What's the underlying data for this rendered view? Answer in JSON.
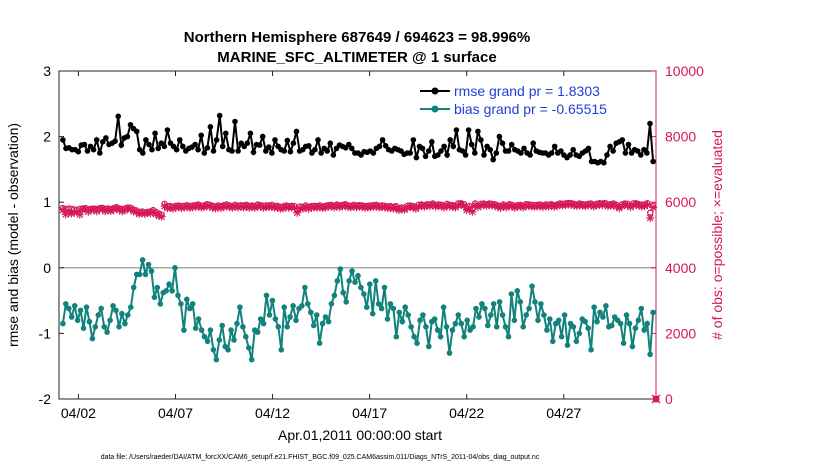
{
  "colors": {
    "rmse": "#000000",
    "bias": "#11827c",
    "obs": "#d6175a",
    "legend_text": "#1f3fd6",
    "zero_line": "#aaaaaa"
  },
  "chart_data": {
    "type": "line",
    "title_line1": "Northern Hemisphere 687649 / 694623 = 98.996%",
    "title_line2": "MARINE_SFC_ALTIMETER @ 1 surface",
    "xlabel": "Apr.01,2011 00:00:00 start",
    "ylabel_left": "rmse and bias (model - observation)",
    "ylabel_right": "# of obs: o=possible; ×=evaluated",
    "xlim": [
      0,
      30.75
    ],
    "ylim_left": [
      -2,
      3
    ],
    "ylim_right": [
      0,
      10000
    ],
    "x_ticks": [
      {
        "x": 1,
        "label": "04/02"
      },
      {
        "x": 6,
        "label": "04/07"
      },
      {
        "x": 11,
        "label": "04/12"
      },
      {
        "x": 16,
        "label": "04/17"
      },
      {
        "x": 21,
        "label": "04/22"
      },
      {
        "x": 26,
        "label": "04/27"
      }
    ],
    "y_ticks_left": [
      -2,
      -1,
      0,
      1,
      2,
      3
    ],
    "y_ticks_right": [
      0,
      2000,
      4000,
      6000,
      8000,
      10000
    ],
    "legend": [
      {
        "name": "rmse grand pr = 1.8303",
        "series": "rmse"
      },
      {
        "name": "bias grand pr = -0.65515",
        "series": "bias"
      }
    ],
    "footer": "data file: /Users/raeder/DAI/ATM_forcXX/CAM6_setup/f.e21.FHIST_BGC.f09_025.CAM6assim.011/Diags_NTrS_2011-04/obs_diag_output.nc",
    "series": [
      {
        "name": "rmse",
        "axis": "left",
        "values": [
          1.95,
          1.82,
          1.83,
          1.8,
          1.8,
          1.77,
          1.87,
          1.88,
          1.78,
          1.85,
          1.8,
          1.95,
          1.75,
          1.92,
          1.98,
          1.88,
          1.9,
          1.93,
          2.31,
          1.87,
          1.98,
          2.0,
          2.18,
          2.12,
          2.08,
          1.8,
          1.75,
          1.95,
          1.88,
          1.8,
          2.05,
          1.82,
          1.9,
          1.85,
          2.1,
          1.9,
          1.85,
          1.8,
          1.95,
          1.85,
          1.78,
          1.82,
          1.84,
          1.88,
          1.8,
          2.02,
          1.75,
          1.83,
          2.15,
          1.78,
          1.95,
          2.32,
          1.85,
          2.05,
          1.8,
          1.78,
          2.23,
          1.78,
          1.9,
          1.85,
          1.9,
          2.05,
          1.76,
          1.88,
          1.87,
          2.0,
          1.78,
          1.84,
          1.75,
          1.95,
          1.85,
          1.8,
          1.78,
          1.94,
          1.77,
          1.9,
          2.08,
          1.78,
          1.8,
          1.85,
          1.86,
          1.75,
          1.8,
          1.95,
          1.75,
          1.82,
          1.78,
          1.9,
          1.72,
          1.82,
          1.87,
          1.85,
          1.83,
          1.88,
          1.82,
          1.75,
          1.75,
          1.72,
          1.77,
          1.76,
          1.78,
          1.75,
          1.82,
          1.85,
          1.95,
          1.86,
          1.8,
          1.78,
          1.82,
          1.8,
          1.78,
          1.73,
          1.75,
          1.75,
          1.95,
          1.68,
          1.85,
          1.82,
          1.7,
          1.78,
          1.92,
          1.7,
          1.72,
          1.78,
          1.85,
          1.72,
          1.95,
          1.85,
          2.1,
          1.8,
          1.78,
          1.72,
          2.1,
          1.88,
          1.75,
          2.08,
          1.95,
          1.72,
          1.85,
          1.8,
          1.65,
          1.75,
          2.0,
          1.9,
          1.78,
          1.78,
          1.88,
          1.8,
          1.78,
          1.75,
          1.82,
          1.75,
          1.72,
          1.9,
          1.78,
          1.76,
          1.75,
          1.75,
          1.72,
          1.75,
          1.85,
          1.75,
          1.78,
          1.72,
          1.68,
          1.72,
          1.8,
          1.72,
          1.7,
          1.75,
          1.78,
          1.82,
          1.62,
          1.62,
          1.6,
          1.62,
          1.6,
          1.72,
          1.85,
          1.78,
          1.9,
          1.92,
          1.95,
          1.75,
          1.88,
          1.75,
          1.8,
          1.78,
          1.72,
          1.8,
          1.75,
          2.2,
          1.62
        ]
      },
      {
        "name": "bias",
        "axis": "left",
        "values": [
          -0.85,
          -0.55,
          -0.62,
          -0.75,
          -0.58,
          -0.8,
          -0.65,
          -0.92,
          -0.6,
          -0.82,
          -1.08,
          -0.9,
          -0.72,
          -0.62,
          -0.9,
          -0.98,
          -0.8,
          -0.58,
          -0.65,
          -0.9,
          -0.7,
          -0.85,
          -0.72,
          -0.6,
          -0.3,
          -0.1,
          -0.1,
          0.12,
          -0.1,
          0.05,
          -0.05,
          -0.45,
          -0.3,
          -0.55,
          -0.38,
          -0.35,
          -0.25,
          -0.35,
          0.0,
          -0.42,
          -0.55,
          -0.95,
          -0.48,
          -0.62,
          -0.55,
          -0.92,
          -0.78,
          -0.95,
          -1.05,
          -1.12,
          -0.95,
          -1.25,
          -1.4,
          -1.1,
          -0.88,
          -1.2,
          -1.25,
          -0.95,
          -1.1,
          -0.85,
          -0.6,
          -0.9,
          -1.05,
          -1.22,
          -1.4,
          -0.95,
          -0.98,
          -0.78,
          -0.85,
          -0.42,
          -0.72,
          -0.5,
          -0.78,
          -0.9,
          -1.25,
          -0.6,
          -0.9,
          -0.75,
          -0.58,
          -0.8,
          -0.62,
          -0.58,
          -0.3,
          -0.55,
          -0.68,
          -0.88,
          -0.72,
          -1.15,
          -0.85,
          -0.75,
          -0.82,
          -0.55,
          -0.42,
          -0.2,
          -0.02,
          -0.38,
          -0.52,
          -0.2,
          -0.05,
          -0.22,
          -0.12,
          -0.3,
          -0.4,
          -0.6,
          -0.25,
          -0.7,
          -0.2,
          -0.55,
          -0.62,
          -0.3,
          -0.78,
          -0.55,
          -0.62,
          -1.05,
          -0.68,
          -0.82,
          -0.6,
          -0.72,
          -0.9,
          -1.05,
          -1.15,
          -0.8,
          -0.72,
          -0.9,
          -1.2,
          -0.82,
          -0.78,
          -0.95,
          -1.05,
          -0.6,
          -0.9,
          -1.3,
          -0.95,
          -0.85,
          -0.72,
          -0.85,
          -1.05,
          -0.8,
          -0.95,
          -0.9,
          -0.62,
          -0.75,
          -0.55,
          -0.62,
          -0.88,
          -0.72,
          -0.55,
          -0.9,
          -0.52,
          -0.72,
          -0.9,
          -1.05,
          -0.4,
          -0.8,
          -0.35,
          -0.52,
          -0.9,
          -0.72,
          -0.62,
          -0.28,
          -0.52,
          -0.8,
          -0.55,
          -0.72,
          -0.95,
          -0.78,
          -1.12,
          -0.85,
          -0.8,
          -1.05,
          -0.72,
          -1.18,
          -0.85,
          -0.9,
          -1.12,
          -1.0,
          -0.78,
          -0.82,
          -0.92,
          -1.25,
          -0.6,
          -0.82,
          -0.68,
          -0.75,
          -0.58,
          -0.9,
          -0.88,
          -0.75,
          -0.8,
          -0.85,
          -1.15,
          -0.72,
          -0.85,
          -1.2,
          -0.92,
          -0.8,
          -0.62,
          -0.95,
          -0.85,
          -1.32,
          -0.68
        ]
      },
      {
        "name": "possible",
        "axis": "right",
        "values": [
          5820,
          5790,
          5810,
          5800,
          5780,
          5760,
          5800,
          5810,
          5820,
          5780,
          5800,
          5810,
          5790,
          5820,
          5830,
          5800,
          5810,
          5790,
          5820,
          5850,
          5810,
          5790,
          5810,
          5840,
          5830,
          5780,
          5750,
          5700,
          5720,
          5690,
          5700,
          5720,
          5760,
          5700,
          5650,
          5620,
          5950,
          5880,
          5880,
          5860,
          5890,
          5900,
          5880,
          5890,
          5910,
          5880,
          5900,
          5910,
          5930,
          5890,
          5900,
          5940,
          5920,
          5890,
          5870,
          5900,
          5880,
          5910,
          5930,
          5900,
          5880,
          5920,
          5890,
          5910,
          5900,
          5920,
          5890,
          5900,
          5880,
          5930,
          5910,
          5890,
          5900,
          5900,
          5920,
          5880,
          5890,
          5860,
          5870,
          5900,
          5880,
          5890,
          5880,
          5760,
          5870,
          5850,
          5900,
          5860,
          5880,
          5890,
          5880,
          5900,
          5870,
          5890,
          5910,
          5920,
          5890,
          5930,
          5900,
          5920,
          5940,
          5900,
          5890,
          5920,
          5900,
          5910,
          5900,
          5880,
          5890,
          5900,
          5910,
          5920,
          5890,
          5900,
          5890,
          5870,
          5880,
          5860,
          5880,
          5820,
          5840,
          5830,
          5890,
          5900,
          5880,
          5850,
          5920,
          5930,
          5910,
          5940,
          5930,
          5960,
          5920,
          5930,
          5920,
          5890,
          5950,
          5920,
          5910,
          5890,
          5960,
          5970,
          5940,
          5820,
          5880,
          5790,
          5960,
          5900,
          5950,
          5960,
          5940,
          5960,
          5950,
          5940,
          5900,
          5880,
          5930,
          5890,
          5940,
          5920,
          5880,
          5910,
          5920,
          5890,
          5940,
          5930,
          5920,
          5910,
          5920,
          5930,
          5900,
          5930,
          5920,
          5940,
          5910,
          5930,
          5960,
          5950,
          5960,
          5980,
          5970,
          5950,
          5930,
          5960,
          5940,
          5930,
          5950,
          5960,
          5920,
          5950,
          5970,
          5960,
          5980,
          5930,
          5940,
          5960,
          5920,
          5870,
          5930,
          5960,
          5950,
          5900,
          5960,
          5970,
          5940,
          5920,
          5930,
          5970,
          5680,
          5890
        ]
      },
      {
        "name": "evaluated",
        "axis": "right",
        "values": [
          5760,
          5630,
          5720,
          5650,
          5690,
          5700,
          5620,
          5760,
          5790,
          5710,
          5750,
          5770,
          5720,
          5780,
          5790,
          5720,
          5760,
          5730,
          5780,
          5800,
          5760,
          5720,
          5750,
          5800,
          5790,
          5720,
          5700,
          5640,
          5660,
          5640,
          5680,
          5660,
          5700,
          5640,
          5580,
          5560,
          5880,
          5820,
          5820,
          5800,
          5840,
          5850,
          5820,
          5840,
          5860,
          5820,
          5850,
          5860,
          5870,
          5840,
          5850,
          5880,
          5870,
          5830,
          5810,
          5850,
          5820,
          5860,
          5870,
          5850,
          5830,
          5870,
          5840,
          5860,
          5840,
          5870,
          5830,
          5850,
          5830,
          5880,
          5860,
          5830,
          5850,
          5850,
          5860,
          5830,
          5840,
          5800,
          5810,
          5850,
          5830,
          5840,
          5830,
          5680,
          5810,
          5800,
          5850,
          5800,
          5830,
          5840,
          5830,
          5850,
          5820,
          5840,
          5860,
          5870,
          5840,
          5880,
          5850,
          5870,
          5890,
          5850,
          5840,
          5870,
          5850,
          5860,
          5850,
          5830,
          5840,
          5850,
          5860,
          5870,
          5840,
          5850,
          5840,
          5820,
          5830,
          5800,
          5830,
          5760,
          5780,
          5770,
          5840,
          5850,
          5830,
          5800,
          5870,
          5880,
          5860,
          5890,
          5880,
          5910,
          5870,
          5880,
          5870,
          5840,
          5900,
          5870,
          5860,
          5840,
          5910,
          5920,
          5890,
          5760,
          5830,
          5710,
          5910,
          5850,
          5900,
          5910,
          5890,
          5910,
          5900,
          5890,
          5850,
          5830,
          5880,
          5840,
          5890,
          5870,
          5830,
          5860,
          5870,
          5840,
          5890,
          5880,
          5870,
          5860,
          5870,
          5880,
          5850,
          5880,
          5870,
          5890,
          5860,
          5880,
          5910,
          5900,
          5910,
          5930,
          5920,
          5900,
          5880,
          5910,
          5890,
          5880,
          5900,
          5910,
          5870,
          5900,
          5920,
          5910,
          5930,
          5880,
          5890,
          5910,
          5870,
          5820,
          5880,
          5910,
          5900,
          5850,
          5910,
          5920,
          5890,
          5870,
          5880,
          5920,
          5520,
          5840
        ]
      }
    ],
    "endpoint_marker": {
      "x": 30.75,
      "value": 0
    }
  }
}
